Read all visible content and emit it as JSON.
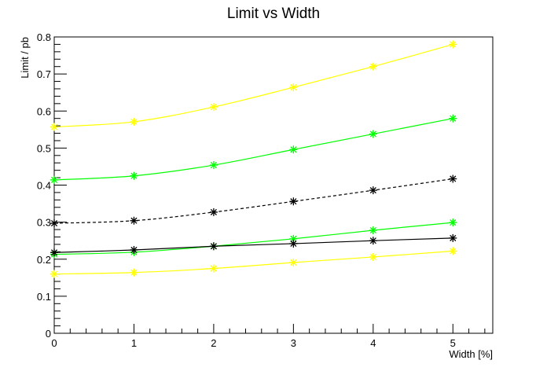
{
  "chart_data": {
    "type": "line",
    "title": "Limit vs Width",
    "xlabel": "Width [%]",
    "ylabel": "Limit / pb",
    "xlim": [
      0,
      5.5
    ],
    "ylim": [
      0,
      0.8
    ],
    "x_ticks": [
      "0",
      "1",
      "2",
      "3",
      "4",
      "5"
    ],
    "y_ticks": [
      "0",
      "0.1",
      "0.2",
      "0.3",
      "0.4",
      "0.5",
      "0.6",
      "0.7",
      "0.8"
    ],
    "x": [
      0,
      1,
      2,
      3,
      4,
      5
    ],
    "grid": false,
    "legend": "none",
    "series": [
      {
        "color": "#ffff00",
        "style": "solid",
        "marker": "star",
        "values": [
          0.557,
          0.571,
          0.611,
          0.664,
          0.72,
          0.78
        ]
      },
      {
        "color": "#00ff00",
        "style": "solid",
        "marker": "star",
        "values": [
          0.414,
          0.425,
          0.454,
          0.496,
          0.538,
          0.58
        ]
      },
      {
        "color": "#000000",
        "style": "dashed",
        "marker": "star",
        "values": [
          0.297,
          0.304,
          0.327,
          0.356,
          0.386,
          0.417
        ]
      },
      {
        "color": "#00ff00",
        "style": "solid",
        "marker": "star",
        "values": [
          0.213,
          0.219,
          0.235,
          0.255,
          0.278,
          0.299
        ]
      },
      {
        "color": "#000000",
        "style": "solid",
        "marker": "star",
        "values": [
          0.218,
          0.225,
          0.235,
          0.242,
          0.25,
          0.257
        ]
      },
      {
        "color": "#ffff00",
        "style": "solid",
        "marker": "star",
        "values": [
          0.16,
          0.164,
          0.175,
          0.191,
          0.206,
          0.222
        ]
      }
    ]
  }
}
